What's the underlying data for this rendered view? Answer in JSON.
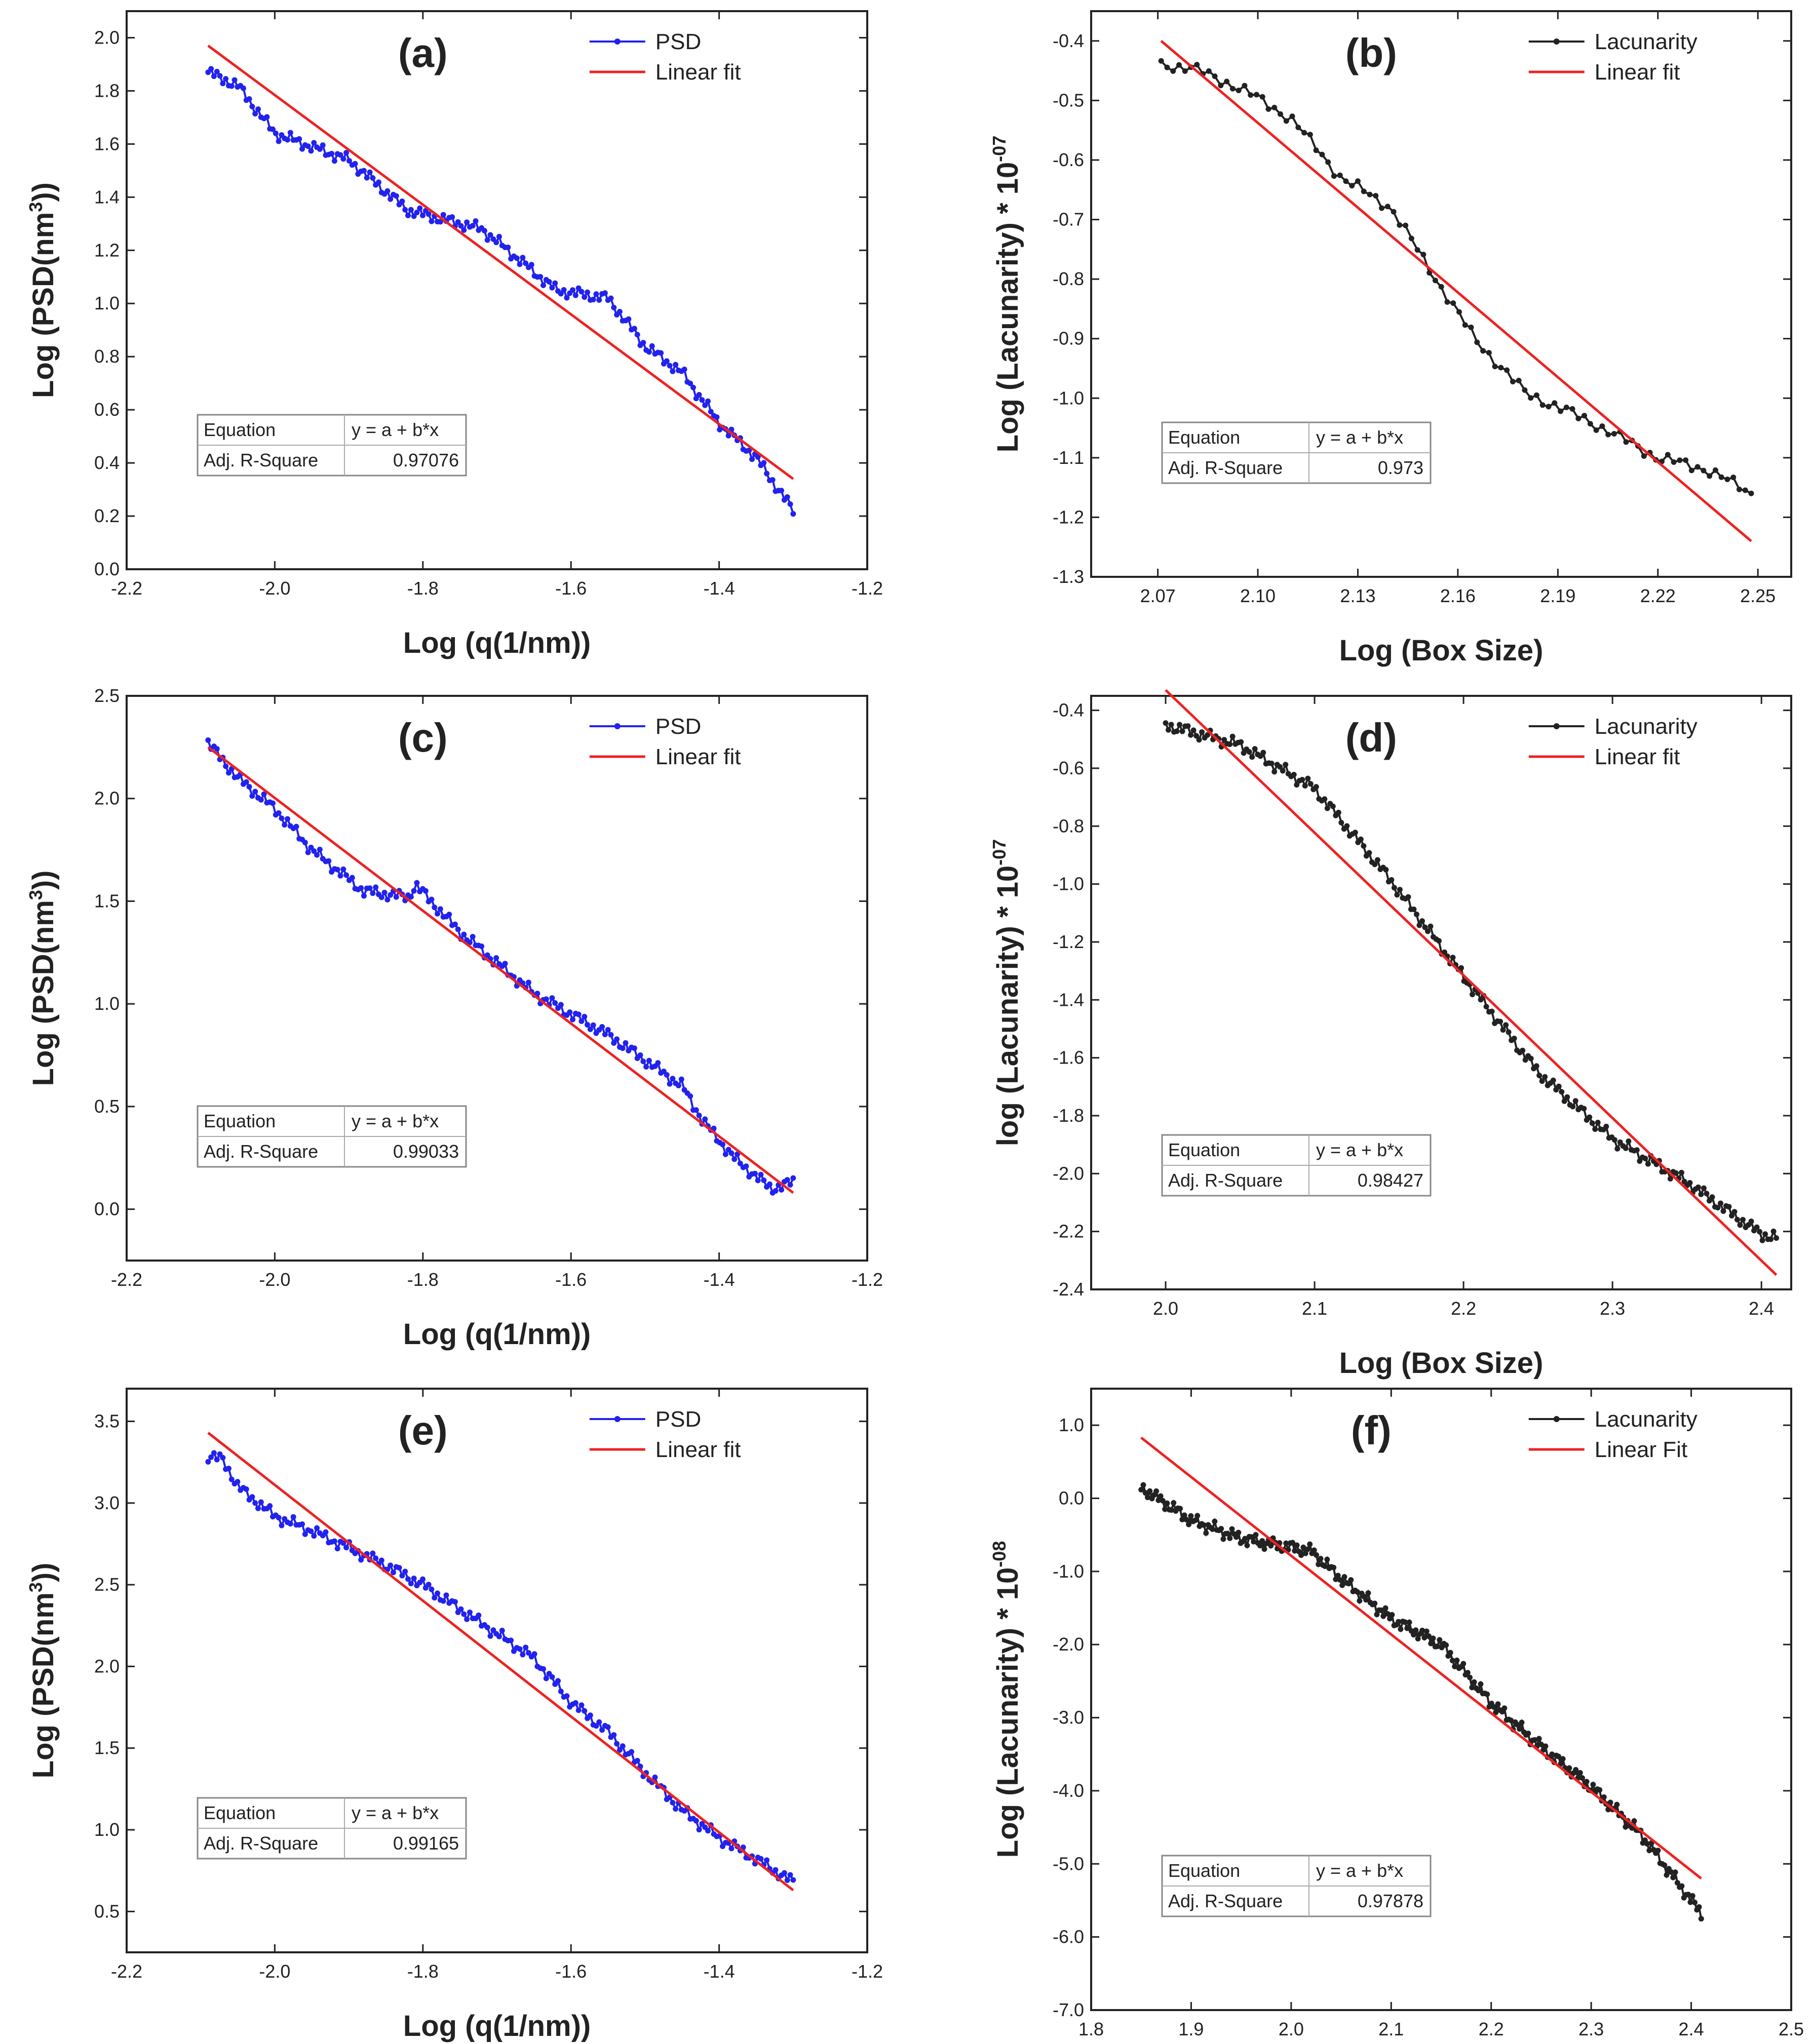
{
  "chart_data": [
    {
      "id": "a",
      "panel_label": "(a)",
      "type": "line",
      "title": "(a)",
      "xlabel": "Log (q(1/nm))",
      "ylabel_main": "Log (PSD(nm",
      "ylabel_sup": "3",
      "ylabel_tail": "))",
      "ylabel_exp": "",
      "xlim": [
        -2.2,
        -1.2
      ],
      "ylim": [
        0.0,
        2.1
      ],
      "xticks": [
        -2.2,
        -2.0,
        -1.8,
        -1.6,
        -1.4,
        -1.2
      ],
      "xtick_labels": [
        "-2.2",
        "-2.0",
        "-1.8",
        "-1.6",
        "-1.4",
        "-1.2"
      ],
      "yticks": [
        0.0,
        0.2,
        0.4,
        0.6,
        0.8,
        1.0,
        1.2,
        1.4,
        1.6,
        1.8,
        2.0
      ],
      "ytick_labels": [
        "0.0",
        "0.2",
        "0.4",
        "0.6",
        "0.8",
        "1.0",
        "1.2",
        "1.4",
        "1.6",
        "1.8",
        "2.0"
      ],
      "legend": {
        "data_label": "PSD",
        "fit_label": "Linear fit",
        "position": "top-right"
      },
      "data_color": "#2222ee",
      "fit_color": "#ee2222",
      "series_anchor_points": [
        [
          -2.09,
          1.87
        ],
        [
          -2.05,
          1.82
        ],
        [
          -2.0,
          1.64
        ],
        [
          -1.9,
          1.54
        ],
        [
          -1.82,
          1.35
        ],
        [
          -1.72,
          1.28
        ],
        [
          -1.62,
          1.05
        ],
        [
          -1.55,
          1.02
        ],
        [
          -1.5,
          0.84
        ],
        [
          -1.45,
          0.74
        ],
        [
          -1.4,
          0.55
        ],
        [
          -1.35,
          0.42
        ],
        [
          -1.3,
          0.22
        ]
      ],
      "series_points": 200,
      "fit": {
        "x": [
          -2.09,
          -1.3
        ],
        "y": [
          1.97,
          0.34
        ]
      },
      "stats_table": {
        "equation_label": "Equation",
        "equation_value": "y = a + b*x",
        "r2_label": "Adj. R-Square",
        "r2_value": "0.97076",
        "position": "bottom-left"
      }
    },
    {
      "id": "b",
      "panel_label": "(b)",
      "type": "line",
      "title": "(b)",
      "xlabel": "Log (Box Size)",
      "ylabel_main": "Log (Lacunarity) * 10",
      "ylabel_sup": "",
      "ylabel_tail": "",
      "ylabel_exp": "-07",
      "xlim": [
        2.05,
        2.26
      ],
      "ylim": [
        -1.3,
        -0.35
      ],
      "xticks": [
        2.07,
        2.1,
        2.13,
        2.16,
        2.19,
        2.22,
        2.25
      ],
      "xtick_labels": [
        "2.07",
        "2.10",
        "2.13",
        "2.16",
        "2.19",
        "2.22",
        "2.25"
      ],
      "yticks": [
        -1.3,
        -1.2,
        -1.1,
        -1.0,
        -0.9,
        -0.8,
        -0.7,
        -0.6,
        -0.5,
        -0.4
      ],
      "ytick_labels": [
        "-1.3",
        "-1.2",
        "-1.1",
        "-1.0",
        "-0.9",
        "-0.8",
        "-0.7",
        "-0.6",
        "-0.5",
        "-0.4"
      ],
      "legend": {
        "data_label": "Lacunarity",
        "fit_label": "Linear fit",
        "position": "top-right"
      },
      "data_color": "#222222",
      "fit_color": "#ee2222",
      "series_anchor_points": [
        [
          2.071,
          -0.44
        ],
        [
          2.08,
          -0.445
        ],
        [
          2.095,
          -0.48
        ],
        [
          2.11,
          -0.53
        ],
        [
          2.125,
          -0.63
        ],
        [
          2.14,
          -0.68
        ],
        [
          2.15,
          -0.77
        ],
        [
          2.165,
          -0.9
        ],
        [
          2.18,
          -0.99
        ],
        [
          2.2,
          -1.04
        ],
        [
          2.22,
          -1.1
        ],
        [
          2.235,
          -1.12
        ],
        [
          2.248,
          -1.16
        ]
      ],
      "series_points": 100,
      "fit": {
        "x": [
          2.071,
          2.248
        ],
        "y": [
          -0.4,
          -1.24
        ]
      },
      "stats_table": {
        "equation_label": "Equation",
        "equation_value": "y = a + b*x",
        "r2_label": "Adj. R-Square",
        "r2_value": "0.973",
        "position": "bottom-left"
      }
    },
    {
      "id": "c",
      "panel_label": "(c)",
      "type": "line",
      "title": "(c)",
      "xlabel": "Log (q(1/nm))",
      "ylabel_main": "Log (PSD(nm",
      "ylabel_sup": "3",
      "ylabel_tail": "))",
      "ylabel_exp": "",
      "xlim": [
        -2.2,
        -1.2
      ],
      "ylim": [
        -0.25,
        2.5
      ],
      "xticks": [
        -2.2,
        -2.0,
        -1.8,
        -1.6,
        -1.4,
        -1.2
      ],
      "xtick_labels": [
        "-2.2",
        "-2.0",
        "-1.8",
        "-1.6",
        "-1.4",
        "-1.2"
      ],
      "yticks": [
        0.0,
        0.5,
        1.0,
        1.5,
        2.0,
        2.5
      ],
      "ytick_labels": [
        "0.0",
        "0.5",
        "1.0",
        "1.5",
        "2.0",
        "2.5"
      ],
      "legend": {
        "data_label": "PSD",
        "fit_label": "Linear fit",
        "position": "top-right"
      },
      "data_color": "#2222ee",
      "fit_color": "#ee2222",
      "series_anchor_points": [
        [
          -2.09,
          2.27
        ],
        [
          -2.05,
          2.1
        ],
        [
          -2.0,
          1.95
        ],
        [
          -1.95,
          1.75
        ],
        [
          -1.88,
          1.55
        ],
        [
          -1.82,
          1.52
        ],
        [
          -1.81,
          1.58
        ],
        [
          -1.75,
          1.35
        ],
        [
          -1.65,
          1.05
        ],
        [
          -1.55,
          0.85
        ],
        [
          -1.45,
          0.6
        ],
        [
          -1.42,
          0.42
        ],
        [
          -1.38,
          0.25
        ],
        [
          -1.33,
          0.1
        ],
        [
          -1.3,
          0.13
        ]
      ],
      "series_points": 200,
      "fit": {
        "x": [
          -2.09,
          -1.3
        ],
        "y": [
          2.25,
          0.08
        ]
      },
      "stats_table": {
        "equation_label": "Equation",
        "equation_value": "y = a + b*x",
        "r2_label": "Adj. R-Square",
        "r2_value": "0.99033",
        "position": "bottom-left"
      }
    },
    {
      "id": "d",
      "panel_label": "(d)",
      "type": "line",
      "title": "(d)",
      "xlabel": "Log (Box Size)",
      "ylabel_main": "log (Lacunarity) * 10",
      "ylabel_sup": "",
      "ylabel_tail": "",
      "ylabel_exp": "-07",
      "xlim": [
        1.95,
        2.42
      ],
      "ylim": [
        -2.4,
        -0.35
      ],
      "xticks": [
        2.0,
        2.1,
        2.2,
        2.3,
        2.4
      ],
      "xtick_labels": [
        "2.0",
        "2.1",
        "2.2",
        "2.3",
        "2.4"
      ],
      "yticks": [
        -2.4,
        -2.2,
        -2.0,
        -1.8,
        -1.6,
        -1.4,
        -1.2,
        -1.0,
        -0.8,
        -0.6,
        -0.4
      ],
      "ytick_labels": [
        "-2.4",
        "-2.2",
        "-2.0",
        "-1.8",
        "-1.6",
        "-1.4",
        "-1.2",
        "-1.0",
        "-0.8",
        "-0.6",
        "-0.4"
      ],
      "legend": {
        "data_label": "Lacunarity",
        "fit_label": "Linear fit",
        "position": "top-right"
      },
      "data_color": "#222222",
      "fit_color": "#ee2222",
      "series_anchor_points": [
        [
          2.0,
          -0.45
        ],
        [
          2.05,
          -0.52
        ],
        [
          2.1,
          -0.67
        ],
        [
          2.15,
          -0.98
        ],
        [
          2.2,
          -1.32
        ],
        [
          2.25,
          -1.65
        ],
        [
          2.3,
          -1.88
        ],
        [
          2.35,
          -2.03
        ],
        [
          2.4,
          -2.21
        ],
        [
          2.41,
          -2.22
        ]
      ],
      "series_points": 220,
      "fit": {
        "x": [
          2.0,
          2.41
        ],
        "y": [
          -0.33,
          -2.35
        ]
      },
      "stats_table": {
        "equation_label": "Equation",
        "equation_value": "y = a + b*x",
        "r2_label": "Adj. R-Square",
        "r2_value": "0.98427",
        "position": "bottom-left"
      }
    },
    {
      "id": "e",
      "panel_label": "(e)",
      "type": "line",
      "title": "(e)",
      "xlabel": "Log (q(1/nm))",
      "ylabel_main": "Log (PSD(nm",
      "ylabel_sup": "3",
      "ylabel_tail": "))",
      "ylabel_exp": "",
      "xlim": [
        -2.2,
        -1.2
      ],
      "ylim": [
        0.25,
        3.7
      ],
      "xticks": [
        -2.2,
        -2.0,
        -1.8,
        -1.6,
        -1.4,
        -1.2
      ],
      "xtick_labels": [
        "-2.2",
        "-2.0",
        "-1.8",
        "-1.6",
        "-1.4",
        "-1.2"
      ],
      "yticks": [
        0.5,
        1.0,
        1.5,
        2.0,
        2.5,
        3.0,
        3.5
      ],
      "ytick_labels": [
        "0.5",
        "1.0",
        "1.5",
        "2.0",
        "2.5",
        "3.0",
        "3.5"
      ],
      "legend": {
        "data_label": "PSD",
        "fit_label": "Linear fit",
        "position": "top-right"
      },
      "data_color": "#2222ee",
      "fit_color": "#ee2222",
      "series_anchor_points": [
        [
          -2.09,
          3.28
        ],
        [
          -2.07,
          3.27
        ],
        [
          -2.05,
          3.1
        ],
        [
          -2.0,
          2.92
        ],
        [
          -1.95,
          2.83
        ],
        [
          -1.85,
          2.62
        ],
        [
          -1.8,
          2.5
        ],
        [
          -1.7,
          2.2
        ],
        [
          -1.65,
          2.05
        ],
        [
          -1.6,
          1.78
        ],
        [
          -1.55,
          1.6
        ],
        [
          -1.5,
          1.35
        ],
        [
          -1.45,
          1.12
        ],
        [
          -1.4,
          0.95
        ],
        [
          -1.35,
          0.82
        ],
        [
          -1.3,
          0.68
        ]
      ],
      "series_points": 200,
      "fit": {
        "x": [
          -2.09,
          -1.3
        ],
        "y": [
          3.43,
          0.63
        ]
      },
      "stats_table": {
        "equation_label": "Equation",
        "equation_value": "y = a + b*x",
        "r2_label": "Adj. R-Square",
        "r2_value": "0.99165",
        "position": "bottom-left"
      }
    },
    {
      "id": "f",
      "panel_label": "(f)",
      "type": "line",
      "title": "(f)",
      "xlabel": "Log (Box Size)",
      "ylabel_main": "Log (Lacunarity) * 10",
      "ylabel_sup": "",
      "ylabel_tail": "",
      "ylabel_exp": "-08",
      "xlim": [
        1.8,
        2.5
      ],
      "ylim": [
        -7.0,
        1.5
      ],
      "xticks": [
        1.8,
        1.9,
        2.0,
        2.1,
        2.2,
        2.3,
        2.4,
        2.5
      ],
      "xtick_labels": [
        "1.8",
        "1.9",
        "2.0",
        "2.1",
        "2.2",
        "2.3",
        "2.4",
        "2.5"
      ],
      "yticks": [
        -7.0,
        -6.0,
        -5.0,
        -4.0,
        -3.0,
        -2.0,
        -1.0,
        0.0,
        1.0
      ],
      "ytick_labels": [
        "-7.0",
        "-6.0",
        "-5.0",
        "-4.0",
        "-3.0",
        "-2.0",
        "-1.0",
        "0.0",
        "1.0"
      ],
      "legend": {
        "data_label": "Lacunarity",
        "fit_label": "Linear Fit",
        "position": "top-right"
      },
      "data_color": "#222222",
      "fit_color": "#ee2222",
      "series_anchor_points": [
        [
          1.85,
          0.15
        ],
        [
          1.9,
          -0.3
        ],
        [
          1.95,
          -0.55
        ],
        [
          2.02,
          -0.72
        ],
        [
          2.05,
          -1.1
        ],
        [
          2.1,
          -1.65
        ],
        [
          2.15,
          -2.0
        ],
        [
          2.2,
          -2.8
        ],
        [
          2.25,
          -3.4
        ],
        [
          2.3,
          -3.95
        ],
        [
          2.35,
          -4.6
        ],
        [
          2.4,
          -5.5
        ],
        [
          2.41,
          -5.68
        ]
      ],
      "series_points": 260,
      "fit": {
        "x": [
          1.85,
          2.41
        ],
        "y": [
          0.83,
          -5.2
        ]
      },
      "stats_table": {
        "equation_label": "Equation",
        "equation_value": "y = a + b*x",
        "r2_label": "Adj. R-Square",
        "r2_value": "0.97878",
        "position": "bottom-left"
      }
    }
  ]
}
